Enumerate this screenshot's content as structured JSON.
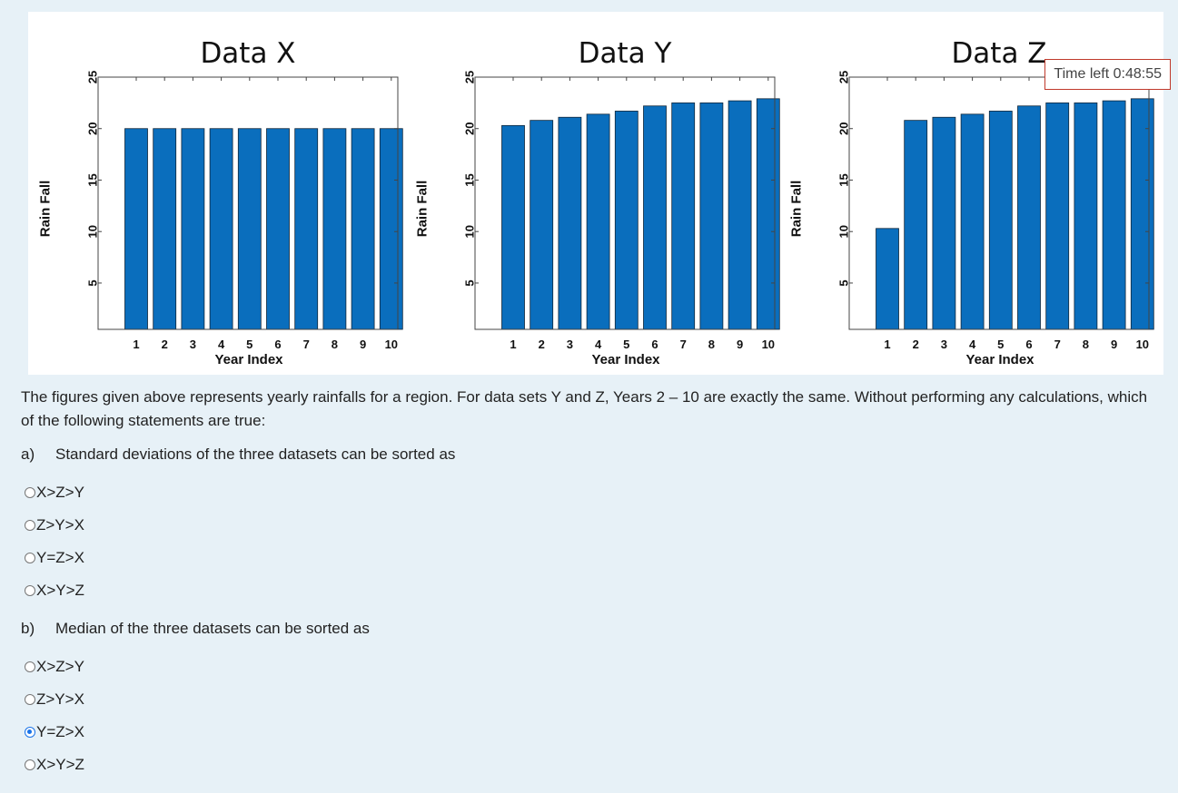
{
  "timer": {
    "text": "Time left 0:48:55"
  },
  "chart_data": [
    {
      "type": "bar",
      "title": "Data X",
      "xlabel": "Year Index",
      "ylabel": "Rain Fall",
      "categories": [
        "1",
        "2",
        "3",
        "4",
        "5",
        "6",
        "7",
        "8",
        "9",
        "10"
      ],
      "values": [
        20,
        20,
        20,
        20,
        20,
        20,
        20,
        20,
        20,
        20
      ],
      "yticks": [
        "5",
        "10",
        "15",
        "20",
        "25"
      ],
      "ylim": [
        0.5,
        25
      ],
      "color": "#0a6ebd"
    },
    {
      "type": "bar",
      "title": "Data Y",
      "xlabel": "Year Index",
      "ylabel": "Rain Fall",
      "categories": [
        "1",
        "2",
        "3",
        "4",
        "5",
        "6",
        "7",
        "8",
        "9",
        "10"
      ],
      "values": [
        20.3,
        20.8,
        21.1,
        21.4,
        21.7,
        22.2,
        22.5,
        22.5,
        22.7,
        22.9
      ],
      "yticks": [
        "5",
        "10",
        "15",
        "20",
        "25"
      ],
      "ylim": [
        0.5,
        25
      ],
      "color": "#0a6ebd"
    },
    {
      "type": "bar",
      "title": "Data Z",
      "xlabel": "Year Index",
      "ylabel": "Rain Fall",
      "categories": [
        "1",
        "2",
        "3",
        "4",
        "5",
        "6",
        "7",
        "8",
        "9",
        "10"
      ],
      "values": [
        10.3,
        20.8,
        21.1,
        21.4,
        21.7,
        22.2,
        22.5,
        22.5,
        22.7,
        22.9
      ],
      "yticks": [
        "5",
        "10",
        "15",
        "20",
        "25"
      ],
      "ylim": [
        0.5,
        25
      ],
      "color": "#0a6ebd"
    }
  ],
  "question": {
    "text": "The figures given above represents yearly rainfalls for a region. For data sets Y and Z, Years 2 – 10 are exactly the same. Without performing any calculations, which of the following statements are true:",
    "parts": [
      {
        "letter": "a)",
        "label": "Standard deviations of the three datasets can be sorted as",
        "options": [
          {
            "label": "X>Z>Y",
            "checked": false
          },
          {
            "label": "Z>Y>X",
            "checked": false
          },
          {
            "label": "Y=Z>X",
            "checked": false
          },
          {
            "label": "X>Y>Z",
            "checked": false
          }
        ]
      },
      {
        "letter": "b)",
        "label": "Median of the three datasets can be sorted as",
        "options": [
          {
            "label": "X>Z>Y",
            "checked": false
          },
          {
            "label": "Z>Y>X",
            "checked": false
          },
          {
            "label": "Y=Z>X",
            "checked": true
          },
          {
            "label": "X>Y>Z",
            "checked": false
          }
        ]
      }
    ]
  }
}
